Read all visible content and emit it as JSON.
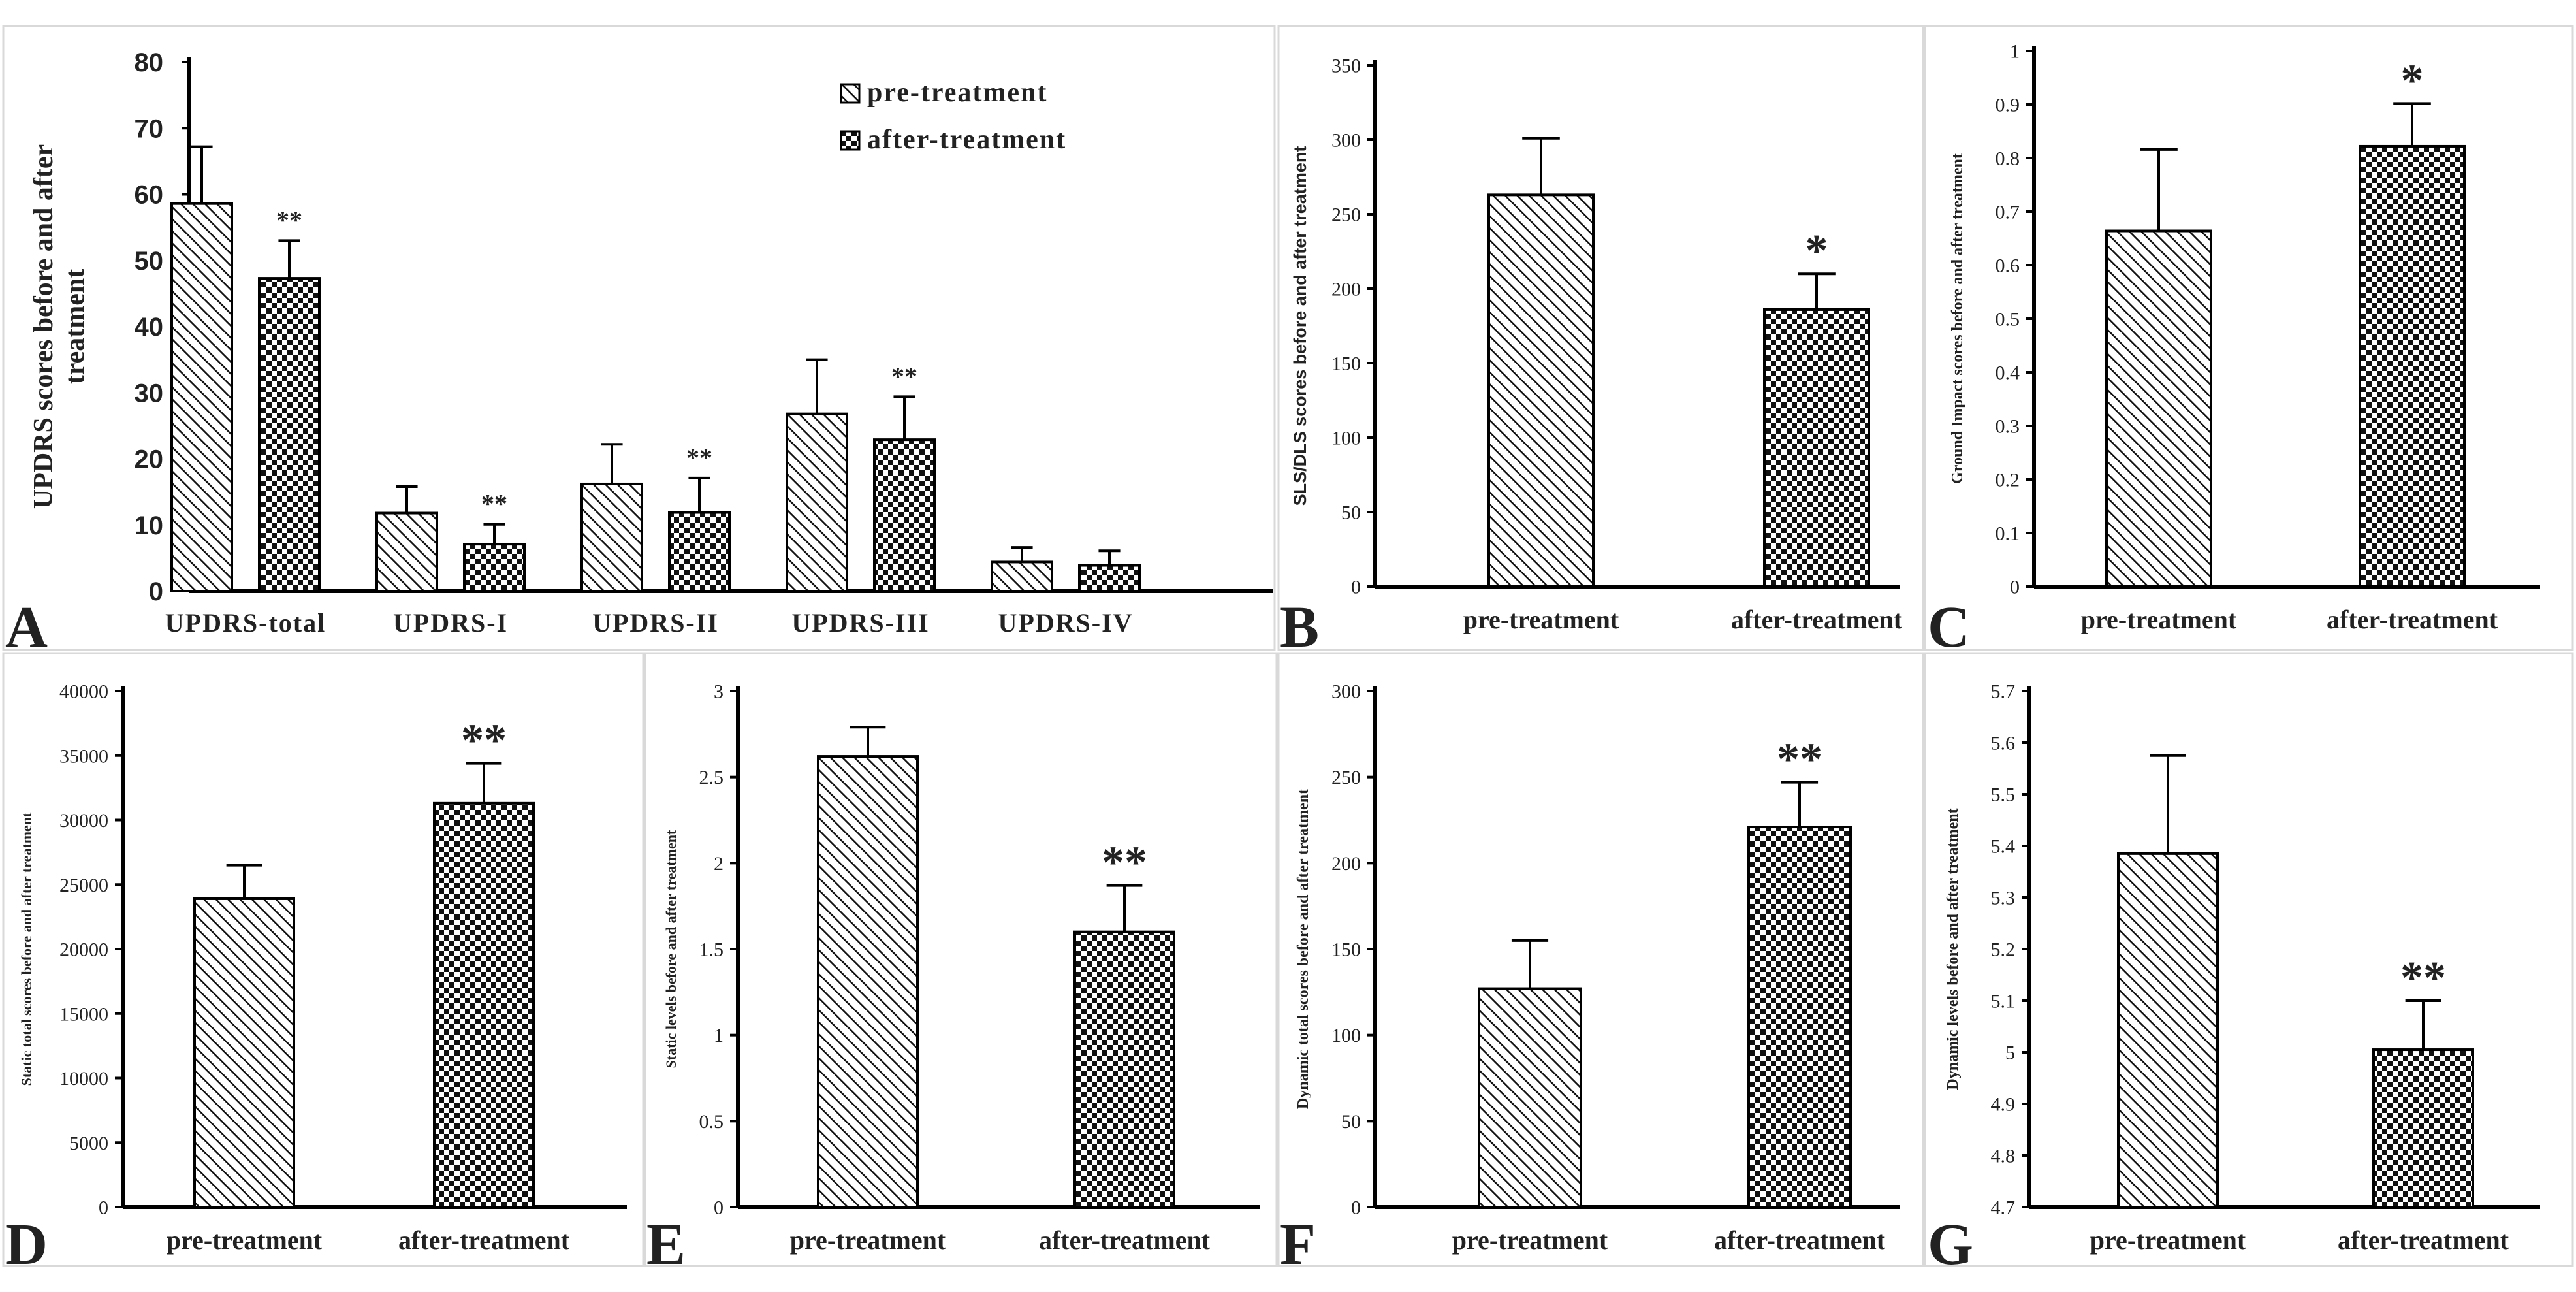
{
  "colors": {
    "axis": "#000000",
    "text": "#222222",
    "border": "#d9d9d9",
    "hatch": "#111111"
  },
  "legend": {
    "pre": "pre-treatment",
    "after": "after-treatment"
  },
  "chart_data": [
    {
      "id": "A",
      "type": "bar",
      "panel_label": "A",
      "ylabel_lines": [
        "UPDRS scores before  and after",
        "treatment"
      ],
      "ylim": [
        0,
        80
      ],
      "yticks": [
        "0",
        "10",
        "20",
        "30",
        "40",
        "50",
        "60",
        "70",
        "80"
      ],
      "categories": [
        "UPDRS-total",
        "UPDRS-I",
        "UPDRS-II",
        "UPDRS-III",
        "UPDRS-IV"
      ],
      "series": [
        {
          "name": "pre-treatment",
          "values": [
            58.6,
            11.8,
            16.2,
            26.8,
            4.4
          ],
          "errors": [
            8.6,
            4.0,
            6.0,
            8.2,
            2.2
          ]
        },
        {
          "name": "after-treatment",
          "values": [
            47.3,
            7.1,
            11.9,
            22.9,
            3.9
          ],
          "errors": [
            5.7,
            3.0,
            5.2,
            6.5,
            2.2
          ]
        }
      ],
      "significance": [
        "**",
        "**",
        "**",
        "**",
        ""
      ]
    },
    {
      "id": "B",
      "type": "bar",
      "panel_label": "B",
      "ylabel": "SLS/DLS scores before and after treatment",
      "ylim": [
        0,
        350
      ],
      "yticks": [
        "0",
        "50",
        "100",
        "150",
        "200",
        "250",
        "300",
        "350"
      ],
      "categories": [
        "pre-treatment",
        "after-treatment"
      ],
      "values": [
        263,
        186
      ],
      "errors": [
        38,
        24
      ],
      "significance": [
        "",
        "*"
      ]
    },
    {
      "id": "C",
      "type": "bar",
      "panel_label": "C",
      "ylabel": "Ground Impact scores before and after treatment",
      "ylim": [
        0,
        1
      ],
      "yticks": [
        "0",
        "0.1",
        "0.2",
        "0.3",
        "0.4",
        "0.5",
        "0.6",
        "0.7",
        "0.8",
        "0.9",
        "1"
      ],
      "categories": [
        "pre-treatment",
        "after-treatment"
      ],
      "values": [
        0.664,
        0.822
      ],
      "errors": [
        0.152,
        0.08
      ],
      "significance": [
        "",
        "*"
      ]
    },
    {
      "id": "D",
      "type": "bar",
      "panel_label": "D",
      "ylabel": "Static total scores before and after treatment",
      "ylim": [
        0,
        40000
      ],
      "yticks": [
        "0",
        "5000",
        "10000",
        "15000",
        "20000",
        "25000",
        "30000",
        "35000",
        "40000"
      ],
      "categories": [
        "pre-treatment",
        "after-treatment"
      ],
      "values": [
        23900,
        31300
      ],
      "errors": [
        2600,
        3100
      ],
      "significance": [
        "",
        "**"
      ]
    },
    {
      "id": "E",
      "type": "bar",
      "panel_label": "E",
      "ylabel": "Static levels before and after treatment",
      "ylim": [
        0,
        3
      ],
      "yticks": [
        "0",
        "0.5",
        "1",
        "1.5",
        "2",
        "2.5",
        "3"
      ],
      "categories": [
        "pre-treatment",
        "after-treatment"
      ],
      "values": [
        2.62,
        1.6
      ],
      "errors": [
        0.17,
        0.27
      ],
      "significance": [
        "",
        "**"
      ]
    },
    {
      "id": "F",
      "type": "bar",
      "panel_label": "F",
      "ylabel": "Dynamic total scores before and after treatment",
      "ylim": [
        0,
        300
      ],
      "yticks": [
        "0",
        "50",
        "100",
        "150",
        "200",
        "250",
        "300"
      ],
      "categories": [
        "pre-treatment",
        "after-treatment"
      ],
      "values": [
        127,
        221
      ],
      "errors": [
        28,
        26
      ],
      "significance": [
        "",
        "**"
      ]
    },
    {
      "id": "G",
      "type": "bar",
      "panel_label": "G",
      "ylabel": "Dynamic levels before and after treatment",
      "ylim": [
        4.7,
        5.7
      ],
      "yticks": [
        "4.7",
        "4.8",
        "4.9",
        "5",
        "5.1",
        "5.2",
        "5.3",
        "5.4",
        "5.5",
        "5.6",
        "5.7"
      ],
      "categories": [
        "pre-treatment",
        "after-treatment"
      ],
      "values": [
        5.385,
        5.005
      ],
      "errors": [
        0.19,
        0.095
      ],
      "significance": [
        "",
        "**"
      ]
    }
  ]
}
